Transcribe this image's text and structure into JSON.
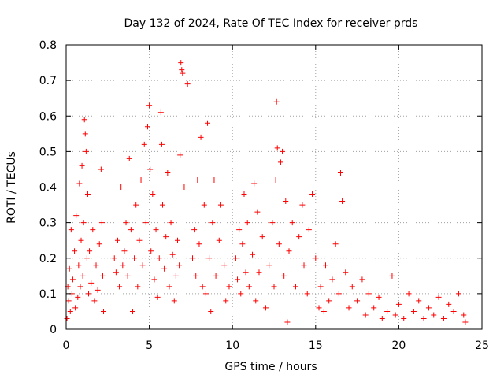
{
  "chart_data": {
    "type": "scatter",
    "title": "Day 132 of 2024, Rate Of TEC Index for receiver prds",
    "xlabel": "GPS time / hours",
    "ylabel": "ROTI / TECUs",
    "xlim": [
      0,
      25
    ],
    "ylim": [
      0,
      0.8
    ],
    "x_ticks": [
      0,
      5,
      10,
      15,
      20,
      25
    ],
    "x_tick_labels": [
      "0",
      "5",
      "10",
      "15",
      "20",
      "25"
    ],
    "y_ticks": [
      0,
      0.1,
      0.2,
      0.3,
      0.4,
      0.5,
      0.6,
      0.7,
      0.8
    ],
    "y_tick_labels": [
      "0",
      "0.1",
      "0.2",
      "0.3",
      "0.4",
      "0.5",
      "0.6",
      "0.7",
      "0.8"
    ],
    "grid": true,
    "marker": "+",
    "color": "#ff0000",
    "series": [
      {
        "name": "ROTI",
        "points": [
          [
            0.05,
            0.03
          ],
          [
            0.1,
            0.12
          ],
          [
            0.15,
            0.08
          ],
          [
            0.2,
            0.17
          ],
          [
            0.25,
            0.05
          ],
          [
            0.3,
            0.28
          ],
          [
            0.35,
            0.1
          ],
          [
            0.4,
            0.14
          ],
          [
            0.5,
            0.22
          ],
          [
            0.55,
            0.06
          ],
          [
            0.6,
            0.32
          ],
          [
            0.7,
            0.09
          ],
          [
            0.75,
            0.18
          ],
          [
            0.8,
            0.41
          ],
          [
            0.85,
            0.12
          ],
          [
            0.9,
            0.25
          ],
          [
            0.95,
            0.46
          ],
          [
            1.0,
            0.15
          ],
          [
            1.05,
            0.3
          ],
          [
            1.1,
            0.59
          ],
          [
            1.15,
            0.55
          ],
          [
            1.2,
            0.5
          ],
          [
            1.25,
            0.2
          ],
          [
            1.3,
            0.38
          ],
          [
            1.35,
            0.1
          ],
          [
            1.4,
            0.22
          ],
          [
            1.5,
            0.13
          ],
          [
            1.6,
            0.28
          ],
          [
            1.7,
            0.08
          ],
          [
            1.8,
            0.18
          ],
          [
            1.9,
            0.11
          ],
          [
            2.0,
            0.24
          ],
          [
            2.1,
            0.45
          ],
          [
            2.15,
            0.3
          ],
          [
            2.2,
            0.15
          ],
          [
            2.25,
            0.05
          ],
          [
            2.9,
            0.2
          ],
          [
            3.0,
            0.16
          ],
          [
            3.1,
            0.25
          ],
          [
            3.2,
            0.12
          ],
          [
            3.3,
            0.4
          ],
          [
            3.4,
            0.18
          ],
          [
            3.5,
            0.22
          ],
          [
            3.6,
            0.3
          ],
          [
            3.7,
            0.15
          ],
          [
            3.8,
            0.48
          ],
          [
            3.9,
            0.28
          ],
          [
            4.0,
            0.05
          ],
          [
            4.1,
            0.2
          ],
          [
            4.2,
            0.35
          ],
          [
            4.3,
            0.12
          ],
          [
            4.4,
            0.25
          ],
          [
            4.5,
            0.42
          ],
          [
            4.6,
            0.18
          ],
          [
            4.7,
            0.52
          ],
          [
            4.8,
            0.3
          ],
          [
            4.9,
            0.57
          ],
          [
            5.0,
            0.63
          ],
          [
            5.05,
            0.45
          ],
          [
            5.1,
            0.22
          ],
          [
            5.2,
            0.38
          ],
          [
            5.3,
            0.14
          ],
          [
            5.4,
            0.28
          ],
          [
            5.5,
            0.09
          ],
          [
            5.6,
            0.2
          ],
          [
            5.7,
            0.61
          ],
          [
            5.75,
            0.52
          ],
          [
            5.8,
            0.35
          ],
          [
            5.9,
            0.17
          ],
          [
            6.0,
            0.26
          ],
          [
            6.1,
            0.44
          ],
          [
            6.2,
            0.12
          ],
          [
            6.3,
            0.3
          ],
          [
            6.4,
            0.21
          ],
          [
            6.5,
            0.08
          ],
          [
            6.6,
            0.15
          ],
          [
            6.7,
            0.25
          ],
          [
            6.8,
            0.18
          ],
          [
            6.85,
            0.49
          ],
          [
            6.9,
            0.75
          ],
          [
            6.95,
            0.73
          ],
          [
            7.0,
            0.72
          ],
          [
            7.1,
            0.4
          ],
          [
            7.3,
            0.69
          ],
          [
            7.6,
            0.2
          ],
          [
            7.7,
            0.28
          ],
          [
            7.8,
            0.15
          ],
          [
            7.9,
            0.42
          ],
          [
            8.0,
            0.24
          ],
          [
            8.1,
            0.54
          ],
          [
            8.2,
            0.12
          ],
          [
            8.3,
            0.35
          ],
          [
            8.4,
            0.1
          ],
          [
            8.5,
            0.58
          ],
          [
            8.6,
            0.2
          ],
          [
            8.7,
            0.05
          ],
          [
            8.8,
            0.3
          ],
          [
            8.9,
            0.42
          ],
          [
            9.0,
            0.15
          ],
          [
            9.2,
            0.25
          ],
          [
            9.3,
            0.35
          ],
          [
            9.5,
            0.18
          ],
          [
            9.6,
            0.08
          ],
          [
            9.8,
            0.12
          ],
          [
            10.2,
            0.2
          ],
          [
            10.3,
            0.14
          ],
          [
            10.4,
            0.28
          ],
          [
            10.5,
            0.1
          ],
          [
            10.6,
            0.24
          ],
          [
            10.7,
            0.38
          ],
          [
            10.8,
            0.16
          ],
          [
            10.9,
            0.3
          ],
          [
            11.0,
            0.12
          ],
          [
            11.2,
            0.21
          ],
          [
            11.3,
            0.41
          ],
          [
            11.4,
            0.08
          ],
          [
            11.5,
            0.33
          ],
          [
            11.6,
            0.16
          ],
          [
            11.8,
            0.26
          ],
          [
            12.0,
            0.06
          ],
          [
            12.2,
            0.18
          ],
          [
            12.4,
            0.3
          ],
          [
            12.5,
            0.12
          ],
          [
            12.6,
            0.42
          ],
          [
            12.65,
            0.64
          ],
          [
            12.7,
            0.51
          ],
          [
            12.8,
            0.24
          ],
          [
            12.9,
            0.47
          ],
          [
            13.0,
            0.5
          ],
          [
            13.1,
            0.15
          ],
          [
            13.2,
            0.36
          ],
          [
            13.3,
            0.02
          ],
          [
            13.4,
            0.22
          ],
          [
            13.6,
            0.3
          ],
          [
            13.8,
            0.12
          ],
          [
            14.0,
            0.26
          ],
          [
            14.2,
            0.35
          ],
          [
            14.3,
            0.18
          ],
          [
            14.5,
            0.1
          ],
          [
            14.6,
            0.28
          ],
          [
            14.8,
            0.38
          ],
          [
            15.0,
            0.2
          ],
          [
            15.2,
            0.06
          ],
          [
            15.3,
            0.12
          ],
          [
            15.5,
            0.05
          ],
          [
            15.6,
            0.18
          ],
          [
            15.8,
            0.08
          ],
          [
            16.0,
            0.14
          ],
          [
            16.2,
            0.24
          ],
          [
            16.4,
            0.1
          ],
          [
            16.5,
            0.44
          ],
          [
            16.6,
            0.36
          ],
          [
            16.8,
            0.16
          ],
          [
            17.0,
            0.06
          ],
          [
            17.2,
            0.12
          ],
          [
            17.5,
            0.08
          ],
          [
            17.8,
            0.14
          ],
          [
            18.0,
            0.04
          ],
          [
            18.2,
            0.1
          ],
          [
            18.5,
            0.06
          ],
          [
            18.8,
            0.09
          ],
          [
            19.0,
            0.03
          ],
          [
            19.3,
            0.05
          ],
          [
            19.6,
            0.15
          ],
          [
            19.8,
            0.04
          ],
          [
            20.0,
            0.07
          ],
          [
            20.3,
            0.03
          ],
          [
            20.6,
            0.1
          ],
          [
            20.9,
            0.05
          ],
          [
            21.2,
            0.08
          ],
          [
            21.5,
            0.03
          ],
          [
            21.8,
            0.06
          ],
          [
            22.1,
            0.04
          ],
          [
            22.4,
            0.09
          ],
          [
            22.7,
            0.03
          ],
          [
            23.0,
            0.07
          ],
          [
            23.3,
            0.05
          ],
          [
            23.6,
            0.1
          ],
          [
            23.9,
            0.04
          ],
          [
            24.0,
            0.02
          ]
        ]
      }
    ]
  }
}
